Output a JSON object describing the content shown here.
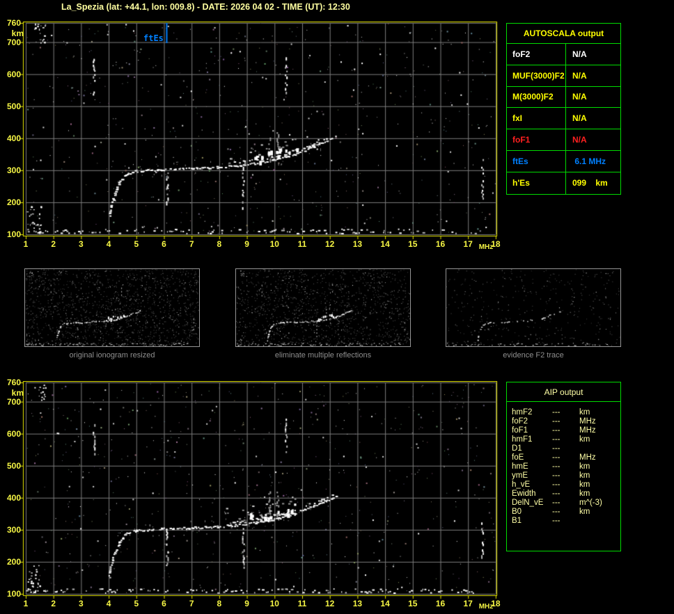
{
  "title": "La_Spezia (lat: +44.1, lon: 009.8) - DATE: 2026 04 02 - TIME (UT): 12:30",
  "colors": {
    "background": "#000000",
    "title_text": "#ffffa0",
    "plot_border": "#e8e800",
    "axis_label": "#f6f645",
    "grid": "#7d7d7d",
    "table_border": "#00dc00",
    "autoscala_header": "#ffff00",
    "aip_text": "#ffffa6",
    "ftEs_blue": "#0080ff",
    "foF1_red": "#ff2020",
    "caption_gray": "#8f8f8f",
    "echo_white": "#ffffff"
  },
  "autoscala_table": {
    "header": "AUTOSCALA output",
    "rows": [
      {
        "label": "foF2",
        "value": "N/A",
        "color": "#ffffff"
      },
      {
        "label": "MUF(3000)F2",
        "value": "N/A",
        "color": "#ffff00"
      },
      {
        "label": "M(3000)F2",
        "value": "N/A",
        "color": "#ffff00"
      },
      {
        "label": "fxI",
        "value": "N/A",
        "color": "#ffff00"
      },
      {
        "label": "foF1",
        "value": "N/A",
        "color": "#ff2020"
      },
      {
        "label": "ftEs",
        "value": " 6.1 MHz",
        "color": "#0080ff"
      },
      {
        "label": "h'Es",
        "value": "099    km",
        "color": "#ffff00"
      }
    ]
  },
  "aip_table": {
    "header": "AIP output",
    "rows": [
      {
        "label": "hmF2",
        "value": "---",
        "unit": "km"
      },
      {
        "label": "foF2",
        "value": "---",
        "unit": "MHz"
      },
      {
        "label": "foF1",
        "value": "---",
        "unit": "MHz"
      },
      {
        "label": "hmF1",
        "value": "---",
        "unit": "km"
      },
      {
        "label": "D1",
        "value": "---",
        "unit": ""
      },
      {
        "label": "foE",
        "value": "---",
        "unit": "MHz"
      },
      {
        "label": "hmE",
        "value": "---",
        "unit": "km"
      },
      {
        "label": "ymE",
        "value": "---",
        "unit": "km"
      },
      {
        "label": "h_vE",
        "value": "---",
        "unit": "km"
      },
      {
        "label": "Ewidth",
        "value": "---",
        "unit": "km"
      },
      {
        "label": "DelN_vE",
        "value": "---",
        "unit": "m^(-3)"
      },
      {
        "label": "B0",
        "value": "---",
        "unit": "km"
      },
      {
        "label": "B1",
        "value": "---",
        "unit": ""
      }
    ]
  },
  "thumbnails": [
    {
      "caption": "original ionogram resized",
      "noise_density": 0.05,
      "trace_skip": 0.25,
      "show_features": true
    },
    {
      "caption": "eliminate multiple reflections",
      "noise_density": 0.045,
      "trace_skip": 0.22,
      "show_features": true
    },
    {
      "caption": "evidence F2 trace",
      "noise_density": 0.013,
      "trace_skip": 0.55,
      "show_features": false
    }
  ],
  "chart_data": {
    "type": "scatter",
    "title": "Ionogram echo traces (virtual height vs frequency)",
    "xlabel": "MHz",
    "ylabel": "km",
    "xlim": [
      1,
      18
    ],
    "ylim": [
      100,
      760
    ],
    "grid": true,
    "x_ticks": [
      1,
      2,
      3,
      4,
      5,
      6,
      7,
      8,
      9,
      10,
      11,
      12,
      13,
      14,
      15,
      16,
      17,
      18
    ],
    "y_ticks": [
      760,
      700,
      600,
      500,
      400,
      300,
      200,
      100
    ],
    "panels": [
      "autoscala ionogram (top)",
      "AIP ionogram (bottom)"
    ],
    "f2_trace": [
      [
        4.0,
        150
      ],
      [
        4.05,
        185
      ],
      [
        4.2,
        230
      ],
      [
        4.35,
        262
      ],
      [
        4.6,
        289
      ],
      [
        5.0,
        299
      ],
      [
        5.9,
        304
      ],
      [
        6.9,
        307
      ],
      [
        7.9,
        311
      ],
      [
        8.9,
        318
      ],
      [
        9.9,
        332
      ],
      [
        10.7,
        351
      ],
      [
        11.4,
        376
      ],
      [
        11.9,
        394
      ],
      [
        12.2,
        406
      ]
    ],
    "es_trace": {
      "h_km": 99,
      "ftEs_MHz": 6.1,
      "f_range": [
        1.0,
        17.3
      ]
    },
    "ftEs_marker": {
      "f_MHz": 6.1,
      "label": "ftEs"
    },
    "features": [
      {
        "kind": "cluster",
        "f": [
          1.03,
          1.55
        ],
        "km": [
          100,
          190
        ],
        "n": 26
      },
      {
        "kind": "cluster",
        "f": [
          1.3,
          1.72
        ],
        "km": [
          700,
          760
        ],
        "n": 16
      },
      {
        "kind": "column",
        "f": 3.45,
        "km": [
          540,
          655
        ],
        "gray": false
      },
      {
        "kind": "column",
        "f": 6.1,
        "km": [
          185,
          300
        ],
        "gray": false
      },
      {
        "kind": "column",
        "f": 8.85,
        "km": [
          185,
          315
        ],
        "gray": false
      },
      {
        "kind": "column",
        "f": 9.8,
        "km": [
          330,
          425
        ],
        "gray": true
      },
      {
        "kind": "column",
        "f": 10.1,
        "km": [
          335,
          430
        ],
        "gray": true
      },
      {
        "kind": "column",
        "f": 10.4,
        "km": [
          545,
          655
        ],
        "gray": false
      },
      {
        "kind": "column",
        "f": 17.5,
        "km": [
          215,
          335
        ],
        "gray": false
      },
      {
        "kind": "band",
        "f": [
          8.2,
          10.8
        ],
        "km_above_trace": [
          8,
          55
        ]
      }
    ]
  }
}
